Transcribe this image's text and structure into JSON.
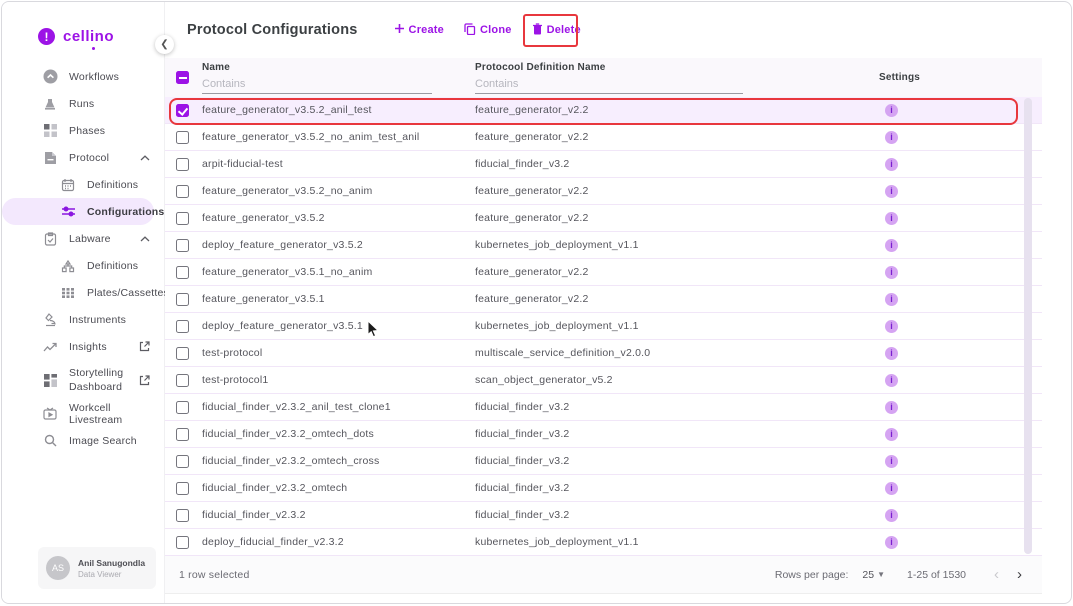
{
  "brand": {
    "name": "cellino"
  },
  "colors": {
    "accent": "#9c13e6",
    "annotation_red": "#e8373d",
    "selected_row_bg": "#f7eefe",
    "active_nav_bg": "#f3e8fd",
    "info_icon_bg": "#d5a4f2"
  },
  "sidebar": {
    "items": [
      {
        "label": "Workflows",
        "icon": "workflows-icon",
        "level": "top"
      },
      {
        "label": "Runs",
        "icon": "runs-icon",
        "level": "top"
      },
      {
        "label": "Phases",
        "icon": "phases-icon",
        "level": "top"
      },
      {
        "label": "Protocol",
        "icon": "protocol-icon",
        "level": "top",
        "expanded": true
      },
      {
        "label": "Definitions",
        "icon": "calendar-icon",
        "level": "sub"
      },
      {
        "label": "Configurations",
        "icon": "tune-icon",
        "level": "sub",
        "active": true
      },
      {
        "label": "Labware",
        "icon": "labware-icon",
        "level": "top",
        "expanded": true
      },
      {
        "label": "Definitions",
        "icon": "hierarchy-icon",
        "level": "sub"
      },
      {
        "label": "Plates/Cassettes",
        "icon": "plates-grid-icon",
        "level": "sub"
      },
      {
        "label": "Instruments",
        "icon": "microscope-icon",
        "level": "top"
      },
      {
        "label": "Insights",
        "icon": "insights-chart-icon",
        "level": "top",
        "external": true
      },
      {
        "label": "Storytelling Dashboard",
        "icon": "dashboard-icon",
        "level": "top",
        "external": true,
        "twoLine": true
      },
      {
        "label": "Workcell Livestream",
        "icon": "livestream-icon",
        "level": "top"
      },
      {
        "label": "Image Search",
        "icon": "search-icon",
        "level": "top"
      }
    ],
    "user": {
      "initials": "AS",
      "name": "Anil Sanugondla",
      "role": "Data Viewer"
    }
  },
  "header": {
    "title": "Protocol Configurations",
    "actions": [
      {
        "label": "Create",
        "icon": "plus-icon"
      },
      {
        "label": "Clone",
        "icon": "copy-icon"
      },
      {
        "label": "Delete",
        "icon": "trash-icon",
        "annotated": true
      }
    ]
  },
  "table": {
    "columns": {
      "name": "Name",
      "definition": "Protocool Definition Name",
      "settings": "Settings"
    },
    "filter_placeholder": "Contains",
    "settings_icon": "info-icon",
    "rows": [
      {
        "name": "feature_generator_v3.5.2_anil_test",
        "definition": "feature_generator_v2.2",
        "selected": true,
        "annotated": true
      },
      {
        "name": "feature_generator_v3.5.2_no_anim_test_anil",
        "definition": "feature_generator_v2.2"
      },
      {
        "name": "arpit-fiducial-test",
        "definition": "fiducial_finder_v3.2"
      },
      {
        "name": "feature_generator_v3.5.2_no_anim",
        "definition": "feature_generator_v2.2"
      },
      {
        "name": "feature_generator_v3.5.2",
        "definition": "feature_generator_v2.2"
      },
      {
        "name": "deploy_feature_generator_v3.5.2",
        "definition": "kubernetes_job_deployment_v1.1"
      },
      {
        "name": "feature_generator_v3.5.1_no_anim",
        "definition": "feature_generator_v2.2"
      },
      {
        "name": "feature_generator_v3.5.1",
        "definition": "feature_generator_v2.2"
      },
      {
        "name": "deploy_feature_generator_v3.5.1",
        "definition": "kubernetes_job_deployment_v1.1"
      },
      {
        "name": "test-protocol",
        "definition": "multiscale_service_definition_v2.0.0"
      },
      {
        "name": "test-protocol1",
        "definition": "scan_object_generator_v5.2"
      },
      {
        "name": "fiducial_finder_v2.3.2_anil_test_clone1",
        "definition": "fiducial_finder_v3.2"
      },
      {
        "name": "fiducial_finder_v2.3.2_omtech_dots",
        "definition": "fiducial_finder_v3.2"
      },
      {
        "name": "fiducial_finder_v2.3.2_omtech_cross",
        "definition": "fiducial_finder_v3.2"
      },
      {
        "name": "fiducial_finder_v2.3.2_omtech",
        "definition": "fiducial_finder_v3.2"
      },
      {
        "name": "fiducial_finder_v2.3.2",
        "definition": "fiducial_finder_v3.2"
      },
      {
        "name": "deploy_fiducial_finder_v2.3.2",
        "definition": "kubernetes_job_deployment_v1.1"
      }
    ]
  },
  "footer": {
    "selected_text": "1 row selected",
    "rows_per_page_label": "Rows per page:",
    "rows_per_page_value": "25",
    "range_text": "1-25 of 1530"
  }
}
